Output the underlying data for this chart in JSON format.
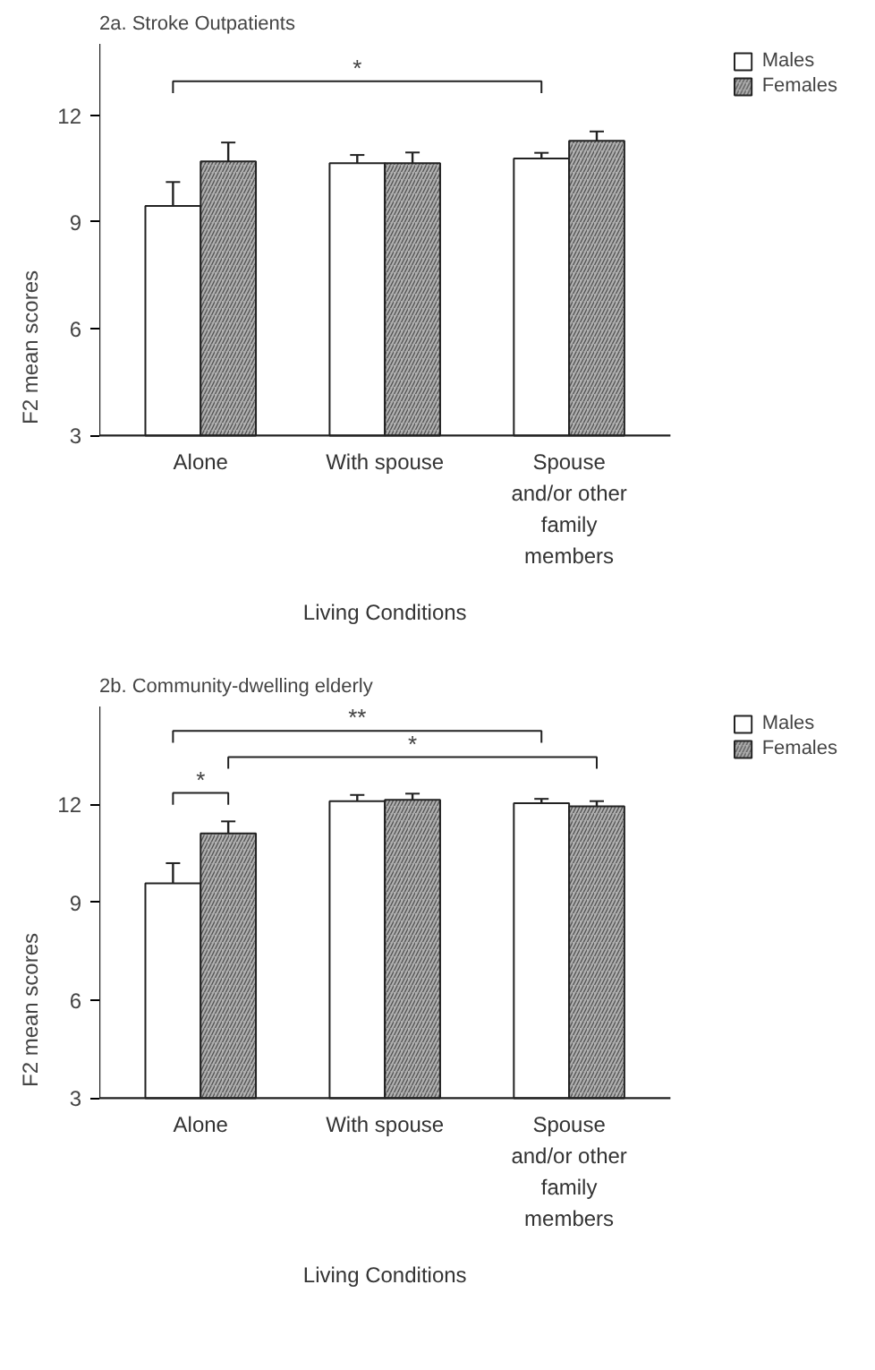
{
  "chart_data": [
    {
      "type": "bar",
      "title": "2a. Stroke Outpatients",
      "xlabel": "Living Conditions",
      "ylabel": "F2 mean scores",
      "categories": [
        "Alone",
        "With spouse",
        "Spouse\nand/or other\nfamily\nmembers"
      ],
      "series": [
        {
          "name": "Males",
          "color": "#ffffff",
          "values": [
            9.45,
            10.65,
            10.78
          ],
          "errors": [
            0.67,
            0.23,
            0.16
          ]
        },
        {
          "name": "Females",
          "color": "#b0b0b0",
          "values": [
            10.7,
            10.65,
            11.28
          ],
          "errors": [
            0.53,
            0.3,
            0.26
          ]
        }
      ],
      "ylim": [
        3,
        14
      ],
      "yticks": [
        3,
        6,
        9,
        12
      ],
      "legend": "right",
      "annotations": [
        "*"
      ]
    },
    {
      "type": "bar",
      "title": "2b. Community-dwelling elderly",
      "xlabel": "Living Conditions",
      "ylabel": "F2 mean scores",
      "categories": [
        "Alone",
        "With spouse",
        "Spouse\nand/or other\nfamily\nmembers"
      ],
      "series": [
        {
          "name": "Males",
          "color": "#ffffff",
          "values": [
            9.58,
            12.1,
            12.04
          ],
          "errors": [
            0.62,
            0.19,
            0.13
          ]
        },
        {
          "name": "Females",
          "color": "#b0b0b0",
          "values": [
            11.11,
            12.14,
            11.94
          ],
          "errors": [
            0.37,
            0.19,
            0.16
          ]
        }
      ],
      "ylim": [
        3,
        15
      ],
      "yticks": [
        3,
        6,
        9,
        12
      ],
      "legend": "right",
      "annotations": [
        "*",
        "**",
        "*"
      ]
    }
  ]
}
